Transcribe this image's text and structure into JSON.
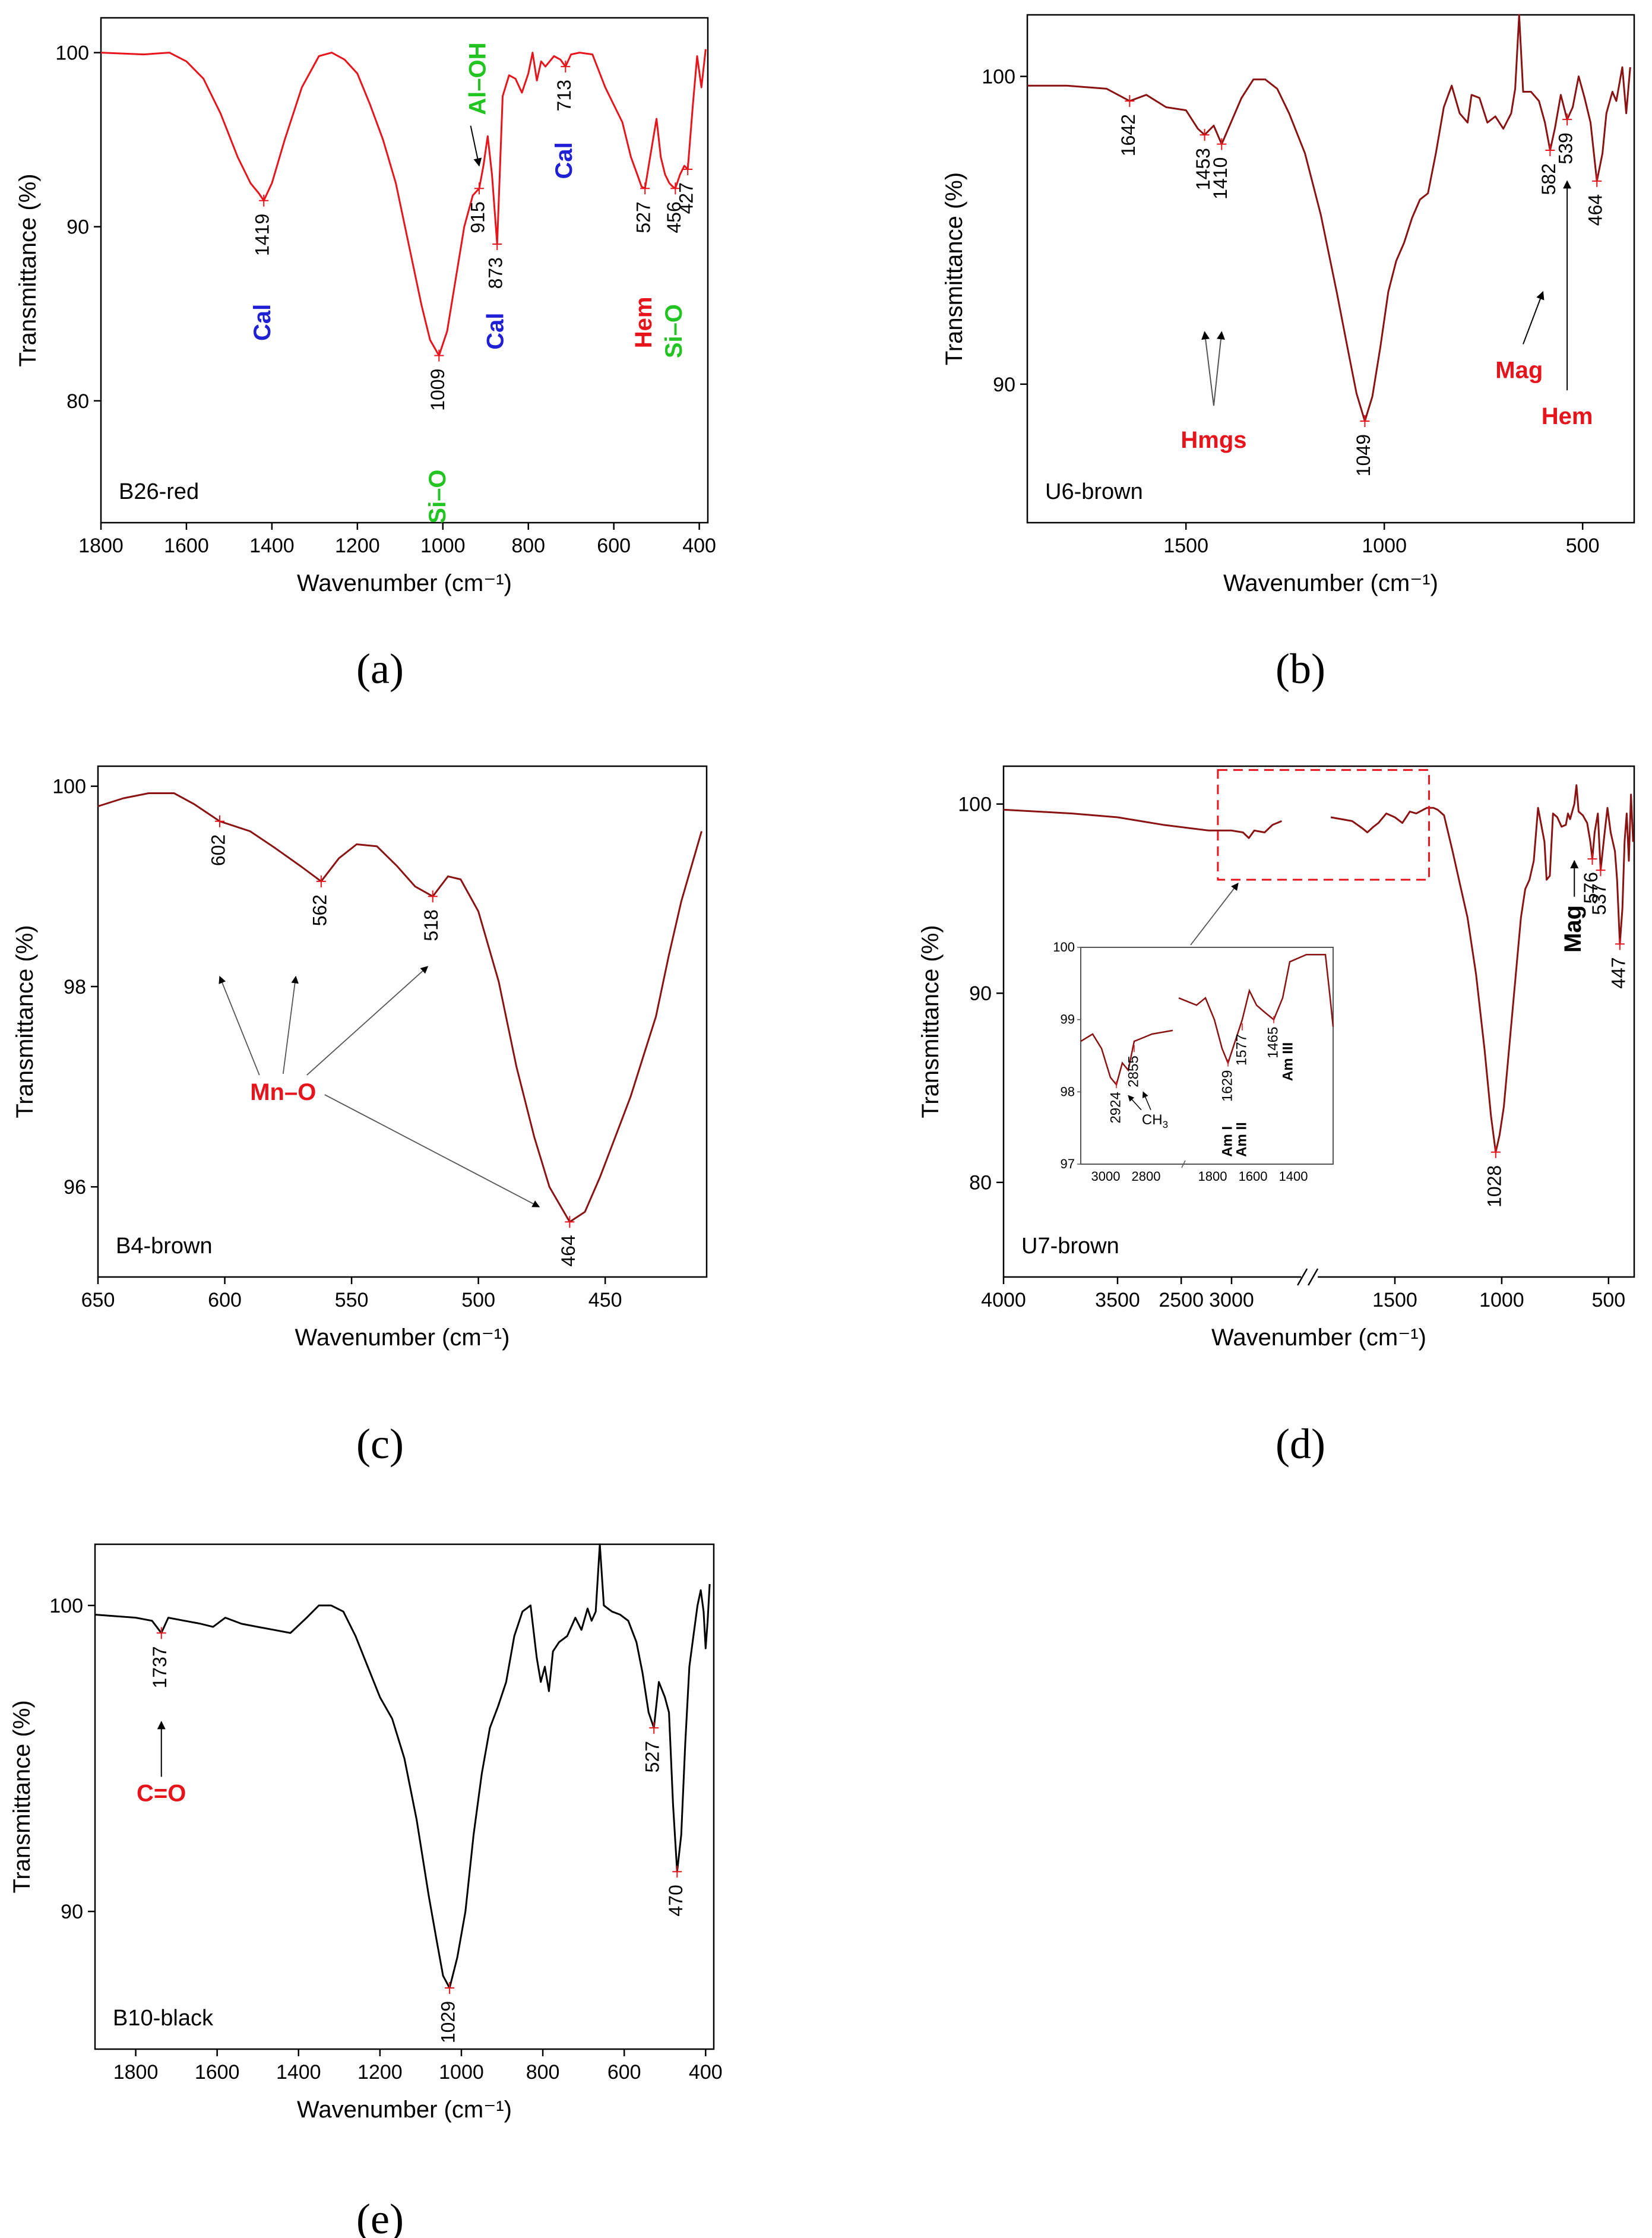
{
  "chart_data": [
    {
      "panel": "(a)",
      "caption_letter": "a",
      "type": "line",
      "sample": "B26-red",
      "color": "#e8141b",
      "xlabel": "Wavenumber (cm⁻¹)",
      "ylabel": "Transmittance (%)",
      "xlim": [
        1800,
        380
      ],
      "ylim": [
        73,
        102
      ],
      "xticks": [
        "1800",
        "1600",
        "1400",
        "1200",
        "1000",
        "800",
        "600",
        "400"
      ],
      "yticks": [
        "80",
        "90",
        "100"
      ],
      "x": [
        1800,
        1700,
        1640,
        1600,
        1560,
        1520,
        1480,
        1450,
        1430,
        1419,
        1400,
        1370,
        1330,
        1290,
        1260,
        1230,
        1200,
        1170,
        1140,
        1110,
        1080,
        1050,
        1030,
        1009,
        990,
        970,
        950,
        930,
        915,
        905,
        895,
        885,
        873,
        860,
        845,
        830,
        815,
        800,
        790,
        780,
        770,
        760,
        740,
        725,
        713,
        700,
        680,
        650,
        620,
        600,
        580,
        560,
        545,
        535,
        527,
        515,
        500,
        490,
        480,
        470,
        462,
        456,
        445,
        435,
        427,
        415,
        405,
        395,
        385
      ],
      "y": [
        100,
        99.9,
        100,
        99.5,
        98.5,
        96.5,
        94,
        92.5,
        91.9,
        91.5,
        92.5,
        95,
        98,
        99.8,
        100,
        99.6,
        98.8,
        97,
        95,
        92.5,
        89,
        85.5,
        83.5,
        82.6,
        84,
        87,
        90,
        91.8,
        92.2,
        93.5,
        95.2,
        93,
        89,
        97.5,
        98.7,
        98.5,
        97.7,
        98.8,
        100,
        98.4,
        99.5,
        99.2,
        99.8,
        99.6,
        99.2,
        99.9,
        100,
        99.9,
        98,
        97,
        96,
        94,
        93,
        92.3,
        92.2,
        94,
        96.2,
        94,
        93,
        92.5,
        92.3,
        92.2,
        93,
        93.5,
        93.3,
        97,
        99.8,
        98,
        100.2
      ],
      "peaks": [
        {
          "label": "1419",
          "x": 1419,
          "y": 91.5
        },
        {
          "label": "1009",
          "x": 1009,
          "y": 82.6
        },
        {
          "label": "915",
          "x": 915,
          "y": 92.2
        },
        {
          "label": "873",
          "x": 873,
          "y": 89
        },
        {
          "label": "713",
          "x": 713,
          "y": 99.2
        },
        {
          "label": "527",
          "x": 527,
          "y": 92.2
        },
        {
          "label": "456",
          "x": 456,
          "y": 92.2
        },
        {
          "label": "427",
          "x": 427,
          "y": 93.3
        }
      ],
      "annotations": [
        {
          "label": "Cal",
          "color": "#1f1fd6"
        },
        {
          "label": "Si–O",
          "color": "#22c422"
        },
        {
          "label": "Al–OH",
          "color": "#22c422"
        },
        {
          "label": "Cal",
          "color": "#1f1fd6"
        },
        {
          "label": "Cal",
          "color": "#1f1fd6"
        },
        {
          "label": "Hem",
          "color": "#e8141b"
        },
        {
          "label": "Si–O",
          "color": "#22c422"
        }
      ]
    },
    {
      "panel": "(b)",
      "caption_letter": "b",
      "type": "line",
      "sample": "U6-brown",
      "color": "#8b1212",
      "xlabel": "Wavenumber (cm⁻¹)",
      "ylabel": "Transmittance (%)",
      "xlim": [
        1900,
        370
      ],
      "ylim": [
        85.5,
        102
      ],
      "xticks": [
        "1500",
        "1000",
        "500"
      ],
      "yticks": [
        "90",
        "100"
      ],
      "x": [
        1900,
        1800,
        1700,
        1642,
        1600,
        1550,
        1500,
        1470,
        1453,
        1430,
        1410,
        1390,
        1360,
        1330,
        1300,
        1270,
        1240,
        1200,
        1160,
        1120,
        1090,
        1070,
        1049,
        1030,
        1010,
        990,
        970,
        950,
        930,
        910,
        890,
        870,
        850,
        830,
        810,
        790,
        780,
        760,
        740,
        720,
        700,
        680,
        670,
        660,
        650,
        630,
        610,
        595,
        582,
        570,
        555,
        539,
        525,
        510,
        495,
        480,
        464,
        450,
        440,
        425,
        415,
        400,
        390,
        380
      ],
      "y": [
        99.7,
        99.7,
        99.6,
        99.2,
        99.4,
        99,
        98.9,
        98.3,
        98.1,
        98.4,
        97.8,
        98.4,
        99.3,
        99.9,
        99.9,
        99.6,
        98.8,
        97.5,
        95.5,
        93,
        91,
        89.7,
        88.8,
        89.6,
        91.2,
        93,
        94,
        94.6,
        95.4,
        96,
        96.2,
        97.5,
        99,
        99.7,
        98.8,
        98.5,
        99.4,
        99.3,
        98.5,
        98.7,
        98.3,
        98.8,
        99.6,
        102,
        99.5,
        99.5,
        99.2,
        98.5,
        97.6,
        98.3,
        99.4,
        98.6,
        99,
        100,
        99.3,
        98.5,
        96.6,
        97.5,
        98.8,
        99.5,
        99.2,
        100.3,
        98.8,
        100.3
      ],
      "peaks": [
        {
          "label": "1642",
          "x": 1642,
          "y": 99.2
        },
        {
          "label": "1453",
          "x": 1453,
          "y": 98.1
        },
        {
          "label": "1410",
          "x": 1410,
          "y": 97.8
        },
        {
          "label": "1049",
          "x": 1049,
          "y": 88.8
        },
        {
          "label": "582",
          "x": 582,
          "y": 97.6
        },
        {
          "label": "539",
          "x": 539,
          "y": 98.6
        },
        {
          "label": "464",
          "x": 464,
          "y": 96.6
        }
      ],
      "annotations": [
        {
          "label": "Hmgs",
          "color": "#e8141b"
        },
        {
          "label": "Mag",
          "color": "#e8141b"
        },
        {
          "label": "Hem",
          "color": "#e8141b"
        }
      ]
    },
    {
      "panel": "(c)",
      "caption_letter": "c",
      "type": "line",
      "sample": "B4-brown",
      "color": "#8b1212",
      "xlabel": "Wavenumber (cm⁻¹)",
      "ylabel": "Transmittance (%)",
      "xlim": [
        650,
        410
      ],
      "ylim": [
        95.1,
        100.2
      ],
      "xticks": [
        "650",
        "600",
        "550",
        "500",
        "450"
      ],
      "yticks": [
        "96",
        "98",
        "100"
      ],
      "x": [
        650,
        640,
        630,
        620,
        612,
        602,
        590,
        580,
        570,
        562,
        555,
        548,
        540,
        532,
        525,
        518,
        512,
        507,
        500,
        492,
        485,
        478,
        472,
        464,
        458,
        452,
        446,
        440,
        435,
        430,
        425,
        420,
        416,
        412
      ],
      "y": [
        99.8,
        99.88,
        99.93,
        99.93,
        99.82,
        99.65,
        99.55,
        99.38,
        99.2,
        99.05,
        99.28,
        99.42,
        99.4,
        99.2,
        99.0,
        98.9,
        99.1,
        99.07,
        98.75,
        98.05,
        97.2,
        96.5,
        96.0,
        95.65,
        95.75,
        96.1,
        96.5,
        96.9,
        97.3,
        97.7,
        98.3,
        98.85,
        99.2,
        99.55
      ],
      "peaks": [
        {
          "label": "602",
          "x": 602,
          "y": 99.65
        },
        {
          "label": "562",
          "x": 562,
          "y": 99.05
        },
        {
          "label": "518",
          "x": 518,
          "y": 98.9
        },
        {
          "label": "464",
          "x": 464,
          "y": 95.65
        }
      ],
      "annotations": [
        {
          "label": "Mn–O",
          "color": "#e8141b"
        }
      ]
    },
    {
      "panel": "(d)",
      "caption_letter": "d",
      "type": "line",
      "sample": "U7-brown",
      "color": "#8b1212",
      "xlabel": "Wavenumber (cm⁻¹)",
      "ylabel": "Transmittance (%)",
      "xlim": [
        4000,
        380
      ],
      "ylim": [
        75,
        102
      ],
      "axis_break": [
        2700,
        1900
      ],
      "xticks": [
        "4000",
        "3500",
        "3000",
        "2500",
        "1500",
        "1000",
        "500"
      ],
      "tick_positions": [
        4000,
        3500,
        3000,
        2500,
        1500,
        1000,
        500
      ],
      "yticks": [
        "80",
        "90",
        "100"
      ],
      "x": [
        4000,
        3700,
        3500,
        3300,
        3100,
        3000,
        2950,
        2924,
        2900,
        2855,
        2820,
        2780,
        1800,
        1700,
        1650,
        1629,
        1600,
        1577,
        1540,
        1500,
        1465,
        1430,
        1400,
        1350,
        1320,
        1300,
        1270,
        1230,
        1200,
        1160,
        1120,
        1080,
        1050,
        1028,
        1010,
        990,
        970,
        950,
        930,
        910,
        890,
        870,
        850,
        830,
        800,
        790,
        775,
        760,
        740,
        720,
        700,
        690,
        680,
        660,
        650,
        640,
        620,
        600,
        585,
        576,
        565,
        550,
        537,
        520,
        505,
        490,
        470,
        460,
        447,
        435,
        425,
        415,
        405,
        395,
        385
      ],
      "y": [
        99.7,
        99.5,
        99.3,
        98.9,
        98.6,
        98.6,
        98.5,
        98.2,
        98.6,
        98.5,
        98.9,
        99.1,
        99.3,
        99.1,
        98.7,
        98.5,
        98.8,
        99.0,
        99.5,
        99.3,
        99.0,
        99.6,
        99.5,
        99.8,
        99.8,
        99.7,
        99.4,
        97.5,
        96,
        94,
        91,
        87,
        83.5,
        81.6,
        82.5,
        84,
        86.5,
        89,
        91.5,
        94,
        95.5,
        96,
        97,
        99.8,
        98,
        96,
        96.2,
        99.5,
        99.3,
        98.8,
        98.9,
        99.5,
        99.2,
        100,
        101,
        99.6,
        99.4,
        99,
        98,
        97.1,
        98.5,
        99.5,
        96.5,
        98.3,
        99.8,
        98.5,
        97.5,
        96,
        92.6,
        94.5,
        98,
        99.5,
        97,
        100.5,
        98
      ],
      "peaks": [
        {
          "label": "1028",
          "x": 1028,
          "y": 81.6
        },
        {
          "label": "576",
          "x": 576,
          "y": 97.1
        },
        {
          "label": "537",
          "x": 537,
          "y": 96.5
        },
        {
          "label": "447",
          "x": 447,
          "y": 92.6
        }
      ],
      "annotations": [
        {
          "label": "Mag",
          "color": "#000000"
        }
      ],
      "inset": {
        "ylim": [
          97,
          100
        ],
        "yticks": [
          "97",
          "98",
          "99",
          "100"
        ],
        "xticks_left": [
          "3000",
          "2800"
        ],
        "xticks_right": [
          "1800",
          "1600",
          "1400"
        ],
        "peaks": [
          "2924",
          "2855",
          "1629",
          "1577",
          "1465"
        ],
        "labels": [
          {
            "label": "CH",
            "subscript": "3",
            "color": "#e8141b"
          },
          {
            "label": "Am I",
            "color": "#e8141b"
          },
          {
            "label": "Am II",
            "color": "#e8141b"
          },
          {
            "label": "Am III",
            "color": "#e8141b"
          }
        ]
      }
    },
    {
      "panel": "(e)",
      "caption_letter": "e",
      "type": "line",
      "sample": "B10-black",
      "color": "#000000",
      "xlabel": "Wavenumber (cm⁻¹)",
      "ylabel": "Transmittance (%)",
      "xlim": [
        1900,
        380
      ],
      "ylim": [
        85.5,
        102
      ],
      "xticks": [
        "1800",
        "1600",
        "1400",
        "1200",
        "1000",
        "800",
        "600",
        "400"
      ],
      "yticks": [
        "90",
        "100"
      ],
      "x": [
        1900,
        1800,
        1760,
        1737,
        1720,
        1680,
        1640,
        1610,
        1580,
        1540,
        1500,
        1460,
        1420,
        1380,
        1350,
        1320,
        1290,
        1260,
        1230,
        1200,
        1170,
        1140,
        1110,
        1080,
        1060,
        1045,
        1029,
        1010,
        990,
        970,
        950,
        930,
        910,
        890,
        870,
        850,
        830,
        815,
        805,
        795,
        785,
        775,
        760,
        740,
        720,
        705,
        690,
        680,
        670,
        660,
        650,
        630,
        610,
        590,
        570,
        555,
        540,
        527,
        515,
        500,
        490,
        480,
        470,
        460,
        450,
        440,
        430,
        420,
        412,
        405,
        400,
        395,
        390
      ],
      "y": [
        99.7,
        99.6,
        99.5,
        99.1,
        99.6,
        99.5,
        99.4,
        99.3,
        99.6,
        99.4,
        99.3,
        99.2,
        99.1,
        99.6,
        100,
        100,
        99.8,
        99,
        98,
        97,
        96.3,
        95,
        93,
        90.5,
        89,
        87.9,
        87.5,
        88.5,
        90,
        92.5,
        94.5,
        96,
        96.7,
        97.5,
        99,
        99.8,
        100,
        98.3,
        97.5,
        98,
        97.2,
        98.5,
        98.8,
        99,
        99.6,
        99.2,
        99.9,
        99.5,
        99.8,
        102,
        100,
        99.8,
        99.7,
        99.5,
        98.8,
        97.8,
        96.5,
        96,
        97.5,
        97,
        96.5,
        93.5,
        91.3,
        92.5,
        95.5,
        98,
        99,
        100,
        100.5,
        99.8,
        98.6,
        99.5,
        100.7
      ],
      "peaks": [
        {
          "label": "1737",
          "x": 1737,
          "y": 99.1
        },
        {
          "label": "1029",
          "x": 1029,
          "y": 87.5
        },
        {
          "label": "527",
          "x": 527,
          "y": 96
        },
        {
          "label": "470",
          "x": 470,
          "y": 91.3
        }
      ],
      "annotations": [
        {
          "label": "C=O",
          "color": "#e8141b"
        }
      ]
    }
  ]
}
